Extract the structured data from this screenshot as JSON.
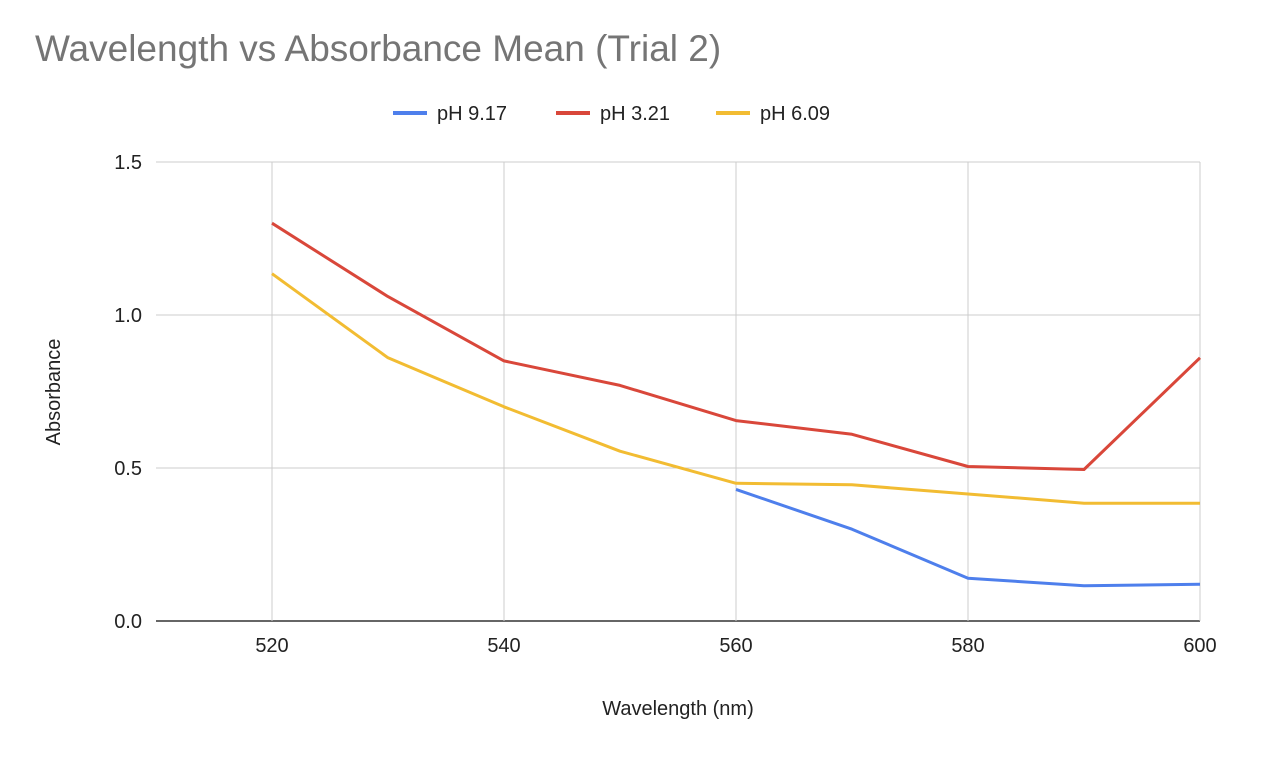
{
  "chart_data": {
    "type": "line",
    "title": "Wavelength vs Absorbance Mean (Trial 2)",
    "xlabel": "Wavelength (nm)",
    "ylabel": "Absorbance",
    "xlim": [
      510,
      600
    ],
    "ylim": [
      0,
      1.5
    ],
    "xticks": [
      520,
      540,
      560,
      580,
      600
    ],
    "yticks": [
      0,
      0.5,
      1.0,
      1.5
    ],
    "xtick_labels": [
      "520",
      "540",
      "560",
      "580",
      "600"
    ],
    "ytick_labels": [
      "0.0",
      "0.5",
      "1.0",
      "1.5"
    ],
    "grid": true,
    "legend_position": "top-center",
    "series": [
      {
        "name": "pH 9.17",
        "color": "#4e7fec",
        "x": [
          560,
          570,
          580,
          590,
          600
        ],
        "y": [
          0.43,
          0.3,
          0.14,
          0.115,
          0.12
        ]
      },
      {
        "name": "pH 3.21",
        "color": "#d9473a",
        "x": [
          520,
          530,
          540,
          550,
          560,
          570,
          580,
          590,
          600
        ],
        "y": [
          1.3,
          1.06,
          0.85,
          0.77,
          0.655,
          0.61,
          0.505,
          0.495,
          0.86
        ]
      },
      {
        "name": "pH 6.09",
        "color": "#f2bc32",
        "x": [
          520,
          530,
          540,
          550,
          560,
          570,
          580,
          590,
          600
        ],
        "y": [
          1.135,
          0.86,
          0.7,
          0.555,
          0.45,
          0.445,
          0.415,
          0.385,
          0.385
        ]
      }
    ]
  }
}
